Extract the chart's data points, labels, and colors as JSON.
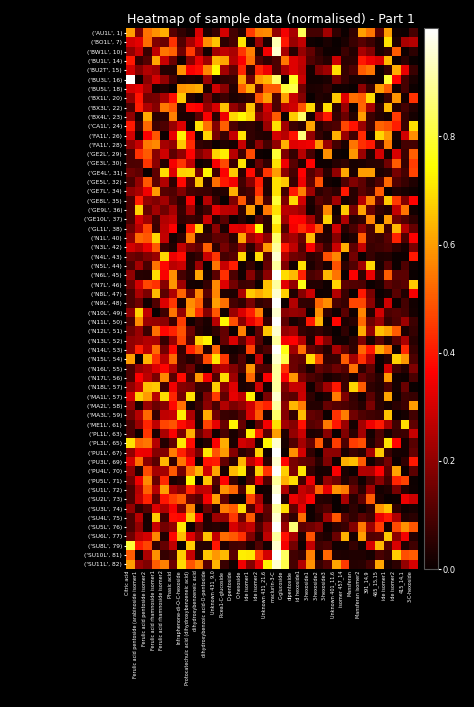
{
  "title": "Heatmap of sample data (normalised) - Part 1",
  "row_labels": [
    "('AU1L', 1)",
    "('BO1L', 7)",
    "('BW1L', 10)",
    "('BU1L', 14)",
    "('BU2T', 15)",
    "('BU3L', 16)",
    "('BU5L', 18)",
    "('BX1L', 20)",
    "('BX3L', 22)",
    "('BX4L', 23)",
    "('CA1L', 24)",
    "('FA1L', 26)",
    "('FA1L', 28)",
    "('GE2L', 29)",
    "('GE3L', 30)",
    "('GE4L', 31)",
    "('GE5L', 32)",
    "('GE7L', 34)",
    "('GE8L', 35)",
    "('GE9L', 36)",
    "('GE10L', 37)",
    "('GL1L', 38)",
    "('N1L', 40)",
    "('N3L', 42)",
    "('N4L', 43)",
    "('N5L', 44)",
    "('N6L', 45)",
    "('N7L', 46)",
    "('N8L', 47)",
    "('N9L', 48)",
    "('N10L', 49)",
    "('N11L', 50)",
    "('N12L', 51)",
    "('N13L', 52)",
    "('N14L', 53)",
    "('N15L', 54)",
    "('N16L', 55)",
    "('N17L', 56)",
    "('N18L', 57)",
    "('MA1L', 57)",
    "('MA2L', 58)",
    "('MA3L', 59)",
    "('ME1L', 61)",
    "('PL1L', 63)",
    "('PL3L', 65)",
    "('PU1L', 67)",
    "('PU3L', 69)",
    "('PU4L', 70)",
    "('PU5L', 71)",
    "('SU1L', 72)",
    "('SU2L', 73)",
    "('SU3L', 74)",
    "('SU4L', 75)",
    "('SU5L', 76)",
    "('SU6L', 77)",
    "('SU8L', 79)",
    "('SU10L', 81)",
    "('SU11L', 82)"
  ],
  "col_labels": [
    "Citric acid",
    "Ferulic acid pentoside (arabinoside isomer1",
    "Ferulic acid pentoside isomer2",
    "Ferulic acid rhamnoside isomer1",
    "Ferulic acid rhamnoside isomer2",
    "Phasic acid",
    "Infraphenone-di-O-C-hexoside",
    "Protocatechuic acid (dihydroxybenzeneic acid)",
    "dihydroxybenzeneic acid",
    "dihydroxybenzoic acid-O-pentoxide",
    "Unknown 431_9,0",
    "Picea1-C-glucoside",
    "D-pentoside",
    "O-hexoside",
    "ide isomer1",
    "ide isomer2",
    "Unknown 431_21,6",
    "maclurin-3-C",
    "C-glucoside",
    "dipentoxide",
    "id hexoside1",
    "3-hexoside1",
    "3-hexoside2",
    "3-hexoside3",
    "Unknown 401_11,6",
    "isomer 457_14",
    "Mansferan",
    "Mansferan isomer2",
    "391_14,9",
    "465_15,15",
    "ide isomer1",
    "ide isomer2",
    "415_14,1",
    "3-C-hexoside"
  ],
  "n_rows": 58,
  "n_cols": 34,
  "vmin": 0.0,
  "vmax": 1.0,
  "colorbar_ticks": [
    0.0,
    0.2,
    0.4,
    0.6,
    0.8
  ],
  "title_fontsize": 9,
  "row_fontsize": 4.2,
  "col_fontsize": 3.5,
  "colorbar_fontsize": 6
}
